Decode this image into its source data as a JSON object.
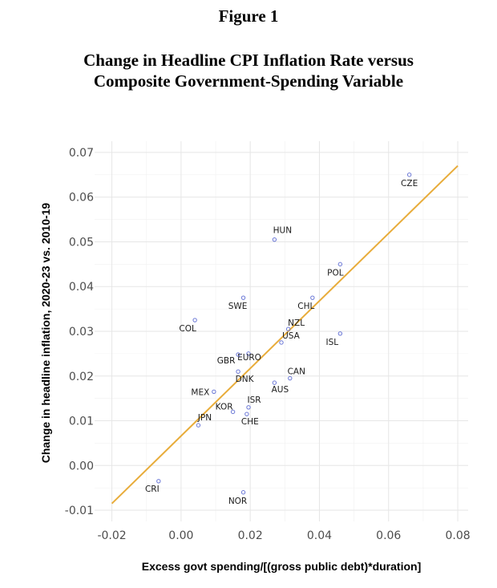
{
  "figure_label": "Figure 1",
  "title_line1": "Change in Headline CPI Inflation Rate versus",
  "title_line2": "Composite Government-Spending Variable",
  "chart_data": {
    "type": "scatter",
    "xlabel": "Excess govt spending/[(gross public debt)*duration]",
    "ylabel": "Change in headline inflation, 2020-23 vs. 2010-19",
    "xlim": [
      -0.025,
      0.083
    ],
    "ylim": [
      -0.0125,
      0.0725
    ],
    "xticks": [
      -0.02,
      0.0,
      0.02,
      0.04,
      0.06,
      0.08
    ],
    "xtick_labels": [
      "-0.02",
      "0.00",
      "0.02",
      "0.04",
      "0.06",
      "0.08"
    ],
    "yticks": [
      -0.01,
      0.0,
      0.01,
      0.02,
      0.03,
      0.04,
      0.05,
      0.06,
      0.07
    ],
    "ytick_labels": [
      "-0.01",
      "0.00",
      "0.01",
      "0.02",
      "0.03",
      "0.04",
      "0.05",
      "0.06",
      "0.07"
    ],
    "grid": true,
    "marker_color": "#6b78d6",
    "fit_line_color": "#e8ac3a",
    "fit_line": {
      "x": [
        -0.02,
        0.08
      ],
      "y": [
        -0.0085,
        0.067
      ]
    },
    "points": [
      {
        "label": "CZE",
        "x": 0.066,
        "y": 0.065
      },
      {
        "label": "HUN",
        "x": 0.027,
        "y": 0.0505
      },
      {
        "label": "POL",
        "x": 0.046,
        "y": 0.045
      },
      {
        "label": "SWE",
        "x": 0.018,
        "y": 0.0375
      },
      {
        "label": "CHL",
        "x": 0.038,
        "y": 0.0375
      },
      {
        "label": "COL",
        "x": 0.004,
        "y": 0.0325
      },
      {
        "label": "NZL",
        "x": 0.031,
        "y": 0.0305
      },
      {
        "label": "ISL",
        "x": 0.046,
        "y": 0.0295
      },
      {
        "label": "USA",
        "x": 0.029,
        "y": 0.0275
      },
      {
        "label": "EURO",
        "x": 0.0195,
        "y": 0.025
      },
      {
        "label": "GBR",
        "x": 0.0165,
        "y": 0.0248
      },
      {
        "label": "DNK",
        "x": 0.0165,
        "y": 0.021
      },
      {
        "label": "CAN",
        "x": 0.0315,
        "y": 0.0195
      },
      {
        "label": "AUS",
        "x": 0.027,
        "y": 0.0185
      },
      {
        "label": "MEX",
        "x": 0.0095,
        "y": 0.0165
      },
      {
        "label": "ISR",
        "x": 0.0195,
        "y": 0.013
      },
      {
        "label": "KOR",
        "x": 0.015,
        "y": 0.012
      },
      {
        "label": "CHE",
        "x": 0.019,
        "y": 0.0115
      },
      {
        "label": "JPN",
        "x": 0.005,
        "y": 0.009
      },
      {
        "label": "CRI",
        "x": -0.0065,
        "y": -0.0035
      },
      {
        "label": "NOR",
        "x": 0.018,
        "y": -0.006
      }
    ]
  }
}
